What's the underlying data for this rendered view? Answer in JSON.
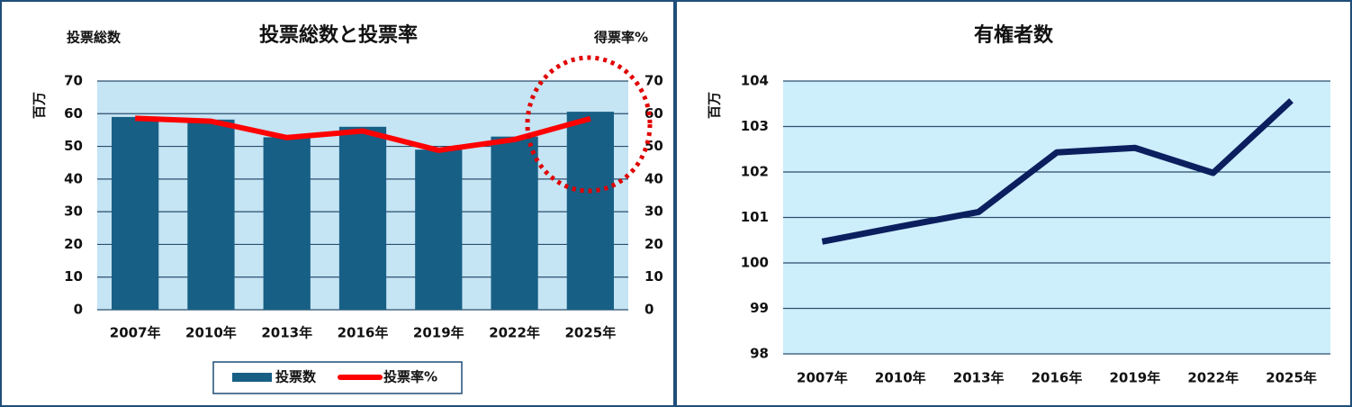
{
  "chart_data": [
    {
      "type": "bar",
      "title": "投票総数と投票率",
      "y_title": "投票総数",
      "y2_title": "得票率%",
      "ylabel": "百万",
      "categories": [
        "2007年",
        "2010年",
        "2013年",
        "2016年",
        "2019年",
        "2022年",
        "2025年"
      ],
      "series": [
        {
          "name": "投票数",
          "color": "#185f85",
          "values": [
            59.0,
            58.2,
            52.8,
            56.0,
            49.0,
            53.0,
            60.6
          ]
        },
        {
          "name": "投票率%",
          "color": "#ff0000",
          "axis": "y2",
          "values": [
            58.6,
            57.7,
            52.7,
            54.7,
            48.8,
            52.1,
            58.5
          ]
        }
      ],
      "ylim": [
        0,
        70
      ],
      "yticks": [
        0,
        10,
        20,
        30,
        40,
        50,
        60,
        70
      ],
      "y2lim": [
        0,
        70
      ],
      "y2ticks": [
        0,
        10,
        20,
        30,
        40,
        50,
        60,
        70
      ],
      "grid": true,
      "legend": "bottom"
    },
    {
      "type": "line",
      "title": "有権者数",
      "ylabel": "百万",
      "categories": [
        "2007年",
        "2010年",
        "2013年",
        "2016年",
        "2019年",
        "2022年",
        "2025年"
      ],
      "values": [
        100.47,
        100.8,
        101.12,
        102.43,
        102.53,
        101.98,
        103.57
      ],
      "color": "#0b1f5e",
      "ylim": [
        98,
        104
      ],
      "yticks": [
        98,
        99,
        100,
        101,
        102,
        103,
        104
      ],
      "grid": true
    }
  ]
}
